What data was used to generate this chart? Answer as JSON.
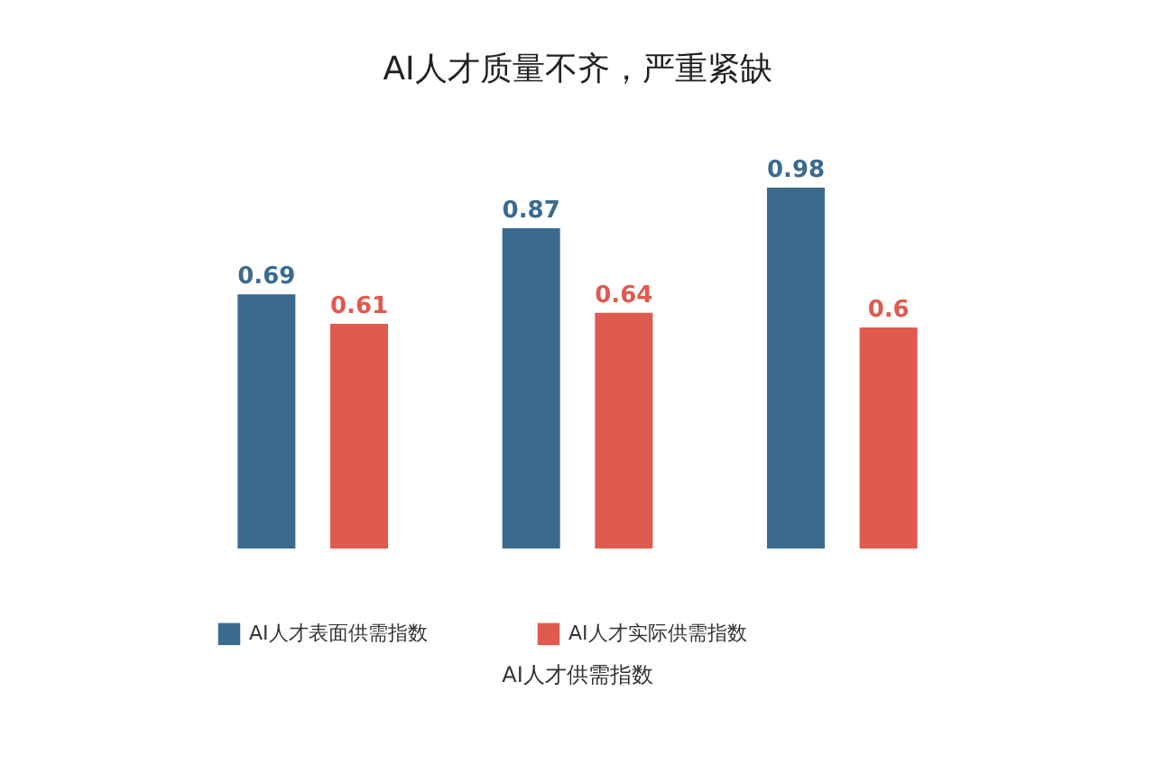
{
  "chart_data": {
    "type": "bar",
    "title": "AI人才质量不齐，严重紧缺",
    "annotations": [
      "AI人才供需指数"
    ],
    "categories": [
      null,
      null,
      null
    ],
    "series": [
      {
        "name": "AI人才表面供需指数",
        "color": "#3b6a8f",
        "values": [
          0.69,
          0.87,
          0.98
        ]
      },
      {
        "name": "AI人才实际供需指数",
        "color": "#e05a4f",
        "values": [
          0.61,
          0.64,
          0.6
        ]
      }
    ],
    "data_labels": true,
    "legend": "bottom",
    "grid": false
  }
}
